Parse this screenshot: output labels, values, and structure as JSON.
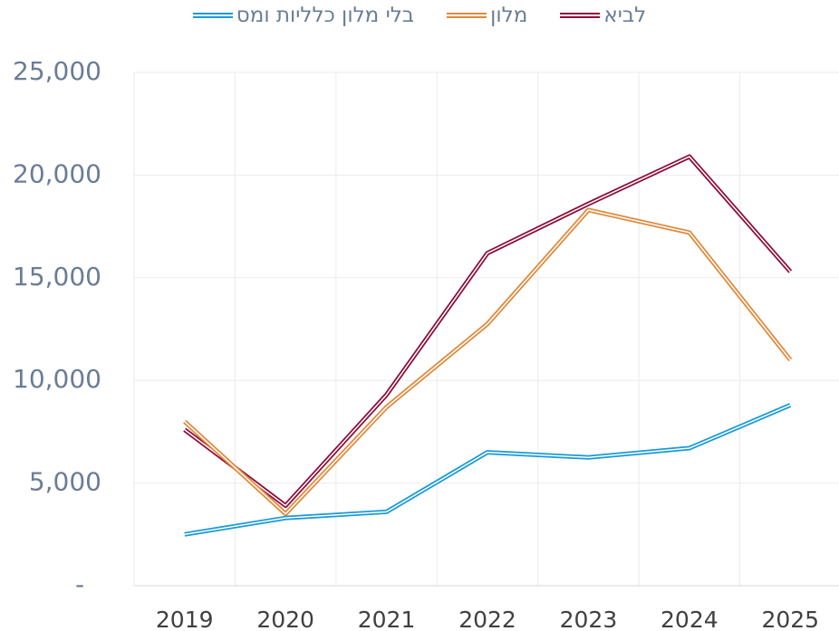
{
  "chart_data": {
    "type": "line",
    "categories": [
      "2019",
      "2020",
      "2021",
      "2022",
      "2023",
      "2024",
      "2025"
    ],
    "series": [
      {
        "name": "לביא",
        "color": "#8b0d3a",
        "values": [
          7600,
          3900,
          9300,
          16200,
          18600,
          20900,
          15300
        ]
      },
      {
        "name": "מלון",
        "color": "#e08a3c",
        "values": [
          8000,
          3500,
          8700,
          12750,
          18300,
          17200,
          11000
        ]
      },
      {
        "name": "בלי מלון כלליות ומס",
        "color": "#1a9ad6",
        "values": [
          2500,
          3300,
          3600,
          6500,
          6250,
          6700,
          8800
        ]
      }
    ],
    "ylim": [
      0,
      25000
    ],
    "yticks": [
      {
        "value": 0,
        "label": "-"
      },
      {
        "value": 5000,
        "label": "5,000"
      },
      {
        "value": 10000,
        "label": "10,000"
      },
      {
        "value": 15000,
        "label": "15,000"
      },
      {
        "value": 20000,
        "label": "20,000"
      },
      {
        "value": 25000,
        "label": "25,000"
      }
    ],
    "grid": true,
    "legend": "top"
  }
}
